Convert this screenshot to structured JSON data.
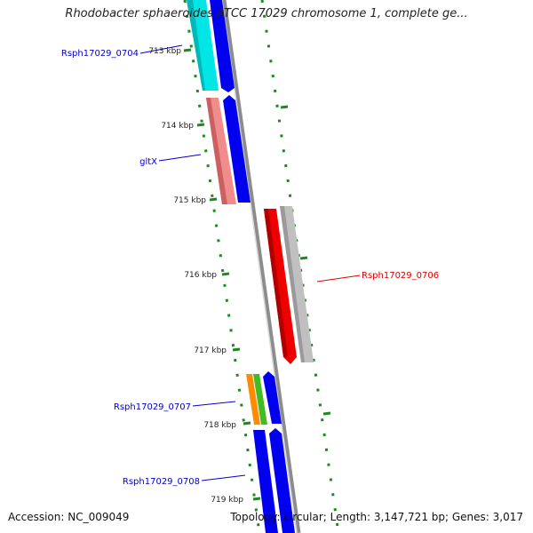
{
  "title": "Rhodobacter sphaeroides ATCC 17029 chromosome 1, complete ge...",
  "footer": {
    "accession": "Accession: NC_009049",
    "summary": "Topology: circular; Length: 3,147,721 bp; Genes: 3,017"
  },
  "colors": {
    "backbone": "#8c8c8c",
    "tick_mark": "#1e8a1e",
    "minor_tick": "#1e8a1e",
    "blue_label": "#0000cc",
    "red_label": "#dd0000",
    "cyan_gene": "#00e5e5",
    "blue_gene": "#0000ee",
    "pink_gene": "#f08c8c",
    "red_gene": "#ee0000",
    "gray_gene": "#c0c0c0",
    "orange_gene": "#ff8c00",
    "green_gene": "#44bb22"
  },
  "scale": {
    "ticks": [
      {
        "label": "713 kbp",
        "kbp": 713
      },
      {
        "label": "714 kbp",
        "kbp": 714
      },
      {
        "label": "715 kbp",
        "kbp": 715
      },
      {
        "label": "716 kbp",
        "kbp": 716
      },
      {
        "label": "717 kbp",
        "kbp": 717
      },
      {
        "label": "718 kbp",
        "kbp": 718
      },
      {
        "label": "719 kbp",
        "kbp": 719
      }
    ]
  },
  "gene_labels": [
    {
      "name": "Rsph17029_0704",
      "color": "blue"
    },
    {
      "name": "gltX",
      "color": "blue"
    },
    {
      "name": "Rsph17029_0706",
      "color": "red"
    },
    {
      "name": "Rsph17029_0707",
      "color": "blue"
    },
    {
      "name": "Rsph17029_0708",
      "color": "blue"
    }
  ]
}
